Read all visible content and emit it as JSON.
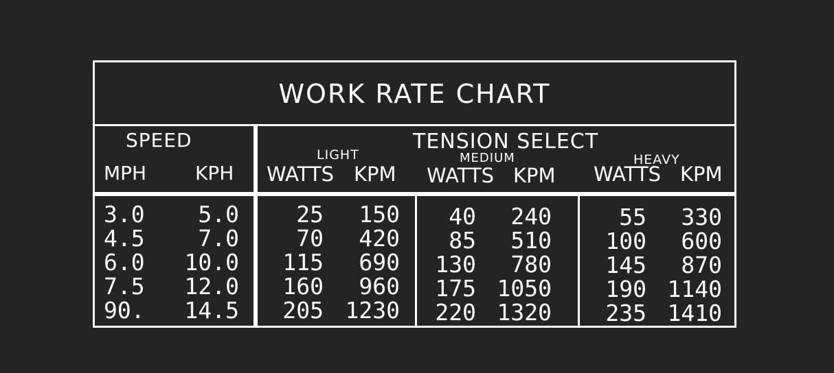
{
  "title": "WORK RATE CHART",
  "speed": {
    "label": "SPEED",
    "mph_label": "MPH",
    "kph_label": "KPH",
    "mph": [
      "3.0",
      "4.5",
      "6.0",
      "7.5",
      "90."
    ],
    "kph": [
      "5.0",
      "7.0",
      "10.0",
      "12.0",
      "14.5"
    ]
  },
  "tension": {
    "label": "TENSION SELECT",
    "light": {
      "label": "LIGHT",
      "watts_label": "WATTS",
      "kpm_label": "KPM",
      "watts": [
        "25",
        "70",
        "115",
        "160",
        "205"
      ],
      "kpm": [
        "150",
        "420",
        "690",
        "960",
        "1230"
      ]
    },
    "medium": {
      "label": "MEDIUM",
      "watts_label": "WATTS",
      "kpm_label": "KPM",
      "watts": [
        "40",
        "85",
        "130",
        "175",
        "220"
      ],
      "kpm": [
        "240",
        "510",
        "780",
        "1050",
        "1320"
      ]
    },
    "heavy": {
      "label": "HEAVY",
      "watts_label": "WATTS",
      "kpm_label": "KPM",
      "watts": [
        "55",
        "100",
        "145",
        "190",
        "235"
      ],
      "kpm": [
        "330",
        "600",
        "870",
        "1140",
        "1410"
      ]
    }
  },
  "colors": {
    "background": "#242424",
    "foreground": "#ffffff"
  }
}
